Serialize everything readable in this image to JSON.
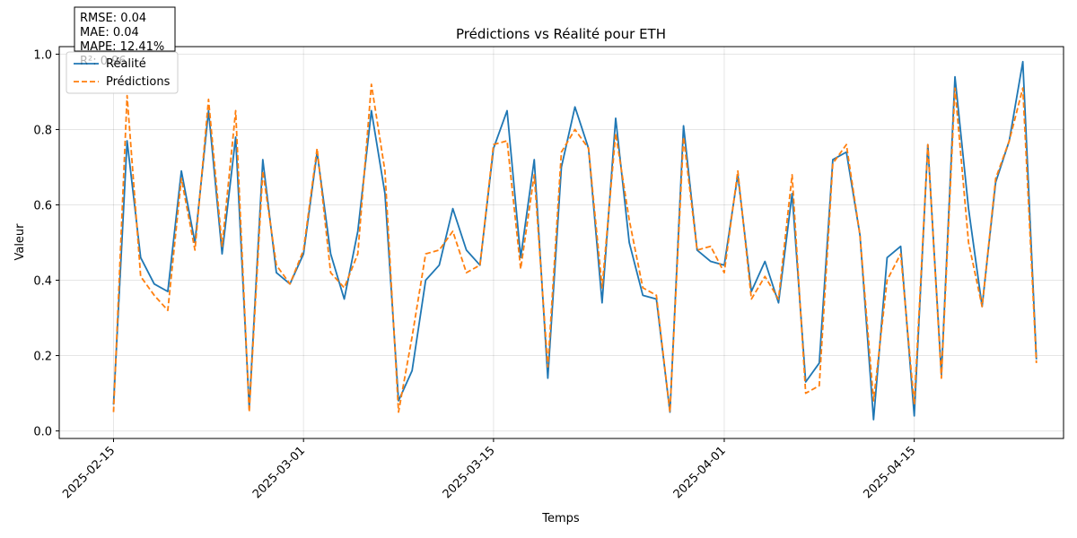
{
  "chart_data": {
    "type": "line",
    "title": "Prédictions vs Réalité pour ETH",
    "xlabel": "Temps",
    "ylabel": "Valeur",
    "x_start": "2025-02-15",
    "x_step_days": 1,
    "xlim": [
      "2025-02-11",
      "2025-04-26"
    ],
    "ylim": [
      -0.02,
      1.02
    ],
    "x_ticks": [
      "2025-02-15",
      "2025-03-01",
      "2025-03-15",
      "2025-04-01",
      "2025-04-15"
    ],
    "y_ticks": [
      "0.0",
      "0.2",
      "0.4",
      "0.6",
      "0.8",
      "1.0"
    ],
    "y_tick_values": [
      0,
      0.2,
      0.4,
      0.6,
      0.8,
      1.0
    ],
    "grid": true,
    "legend_position": "top-left",
    "series": [
      {
        "name": "Réalité",
        "color": "#1f77b4",
        "style": "solid",
        "values": [
          0.07,
          0.77,
          0.46,
          0.39,
          0.37,
          0.69,
          0.5,
          0.85,
          0.47,
          0.78,
          0.06,
          0.72,
          0.42,
          0.39,
          0.47,
          0.74,
          0.47,
          0.35,
          0.53,
          0.85,
          0.63,
          0.08,
          0.16,
          0.4,
          0.44,
          0.59,
          0.48,
          0.44,
          0.75,
          0.85,
          0.46,
          0.72,
          0.14,
          0.7,
          0.86,
          0.75,
          0.34,
          0.83,
          0.5,
          0.36,
          0.35,
          0.05,
          0.81,
          0.48,
          0.45,
          0.44,
          0.68,
          0.37,
          0.45,
          0.34,
          0.63,
          0.13,
          0.18,
          0.72,
          0.74,
          0.52,
          0.03,
          0.46,
          0.49,
          0.04,
          0.76,
          0.15,
          0.94,
          0.59,
          0.33,
          0.66,
          0.77,
          0.98,
          0.19
        ]
      },
      {
        "name": "Prédictions",
        "color": "#ff7f0e",
        "style": "dashed",
        "values": [
          0.05,
          0.89,
          0.41,
          0.36,
          0.32,
          0.67,
          0.48,
          0.88,
          0.49,
          0.85,
          0.05,
          0.69,
          0.44,
          0.39,
          0.48,
          0.75,
          0.42,
          0.38,
          0.47,
          0.92,
          0.69,
          0.05,
          0.25,
          0.47,
          0.48,
          0.53,
          0.42,
          0.44,
          0.76,
          0.77,
          0.43,
          0.68,
          0.17,
          0.74,
          0.8,
          0.75,
          0.38,
          0.79,
          0.56,
          0.38,
          0.36,
          0.05,
          0.78,
          0.48,
          0.49,
          0.42,
          0.69,
          0.35,
          0.41,
          0.35,
          0.68,
          0.1,
          0.12,
          0.71,
          0.76,
          0.52,
          0.08,
          0.4,
          0.47,
          0.07,
          0.76,
          0.14,
          0.91,
          0.5,
          0.33,
          0.67,
          0.77,
          0.91,
          0.18
        ]
      }
    ],
    "metrics_box": {
      "lines": [
        "RMSE: 0.04",
        "MAE: 0.04",
        "MAPE: 12.41%",
        "R²: 0.96"
      ]
    }
  }
}
